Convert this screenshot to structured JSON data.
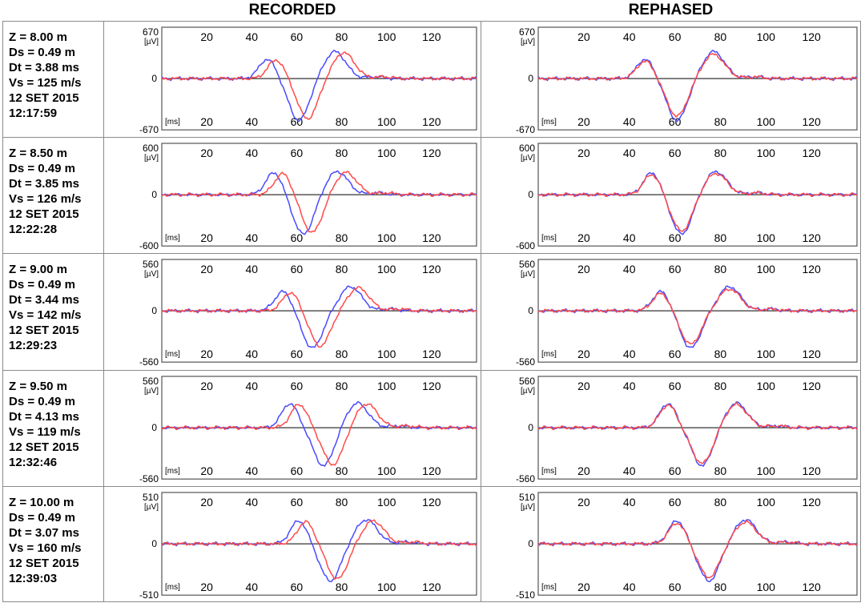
{
  "headings": {
    "recorded": "RECORDED",
    "rephased": "REPHASED"
  },
  "colors": {
    "blue": "#4a4aff",
    "red": "#ff4a4a",
    "frame": "#555555",
    "zero": "#333333"
  },
  "chart_data": [
    {
      "type": "line",
      "info": [
        "Z = 8.00 m",
        "Ds = 0.49 m",
        "Dt = 3.88 ms",
        "Vs = 125 m/s",
        "12 SET 2015",
        "12:17:59"
      ],
      "ylim": [
        -670,
        670
      ],
      "ytick_top": "670",
      "ytick_bottom": "-670",
      "ytick_zero": "0",
      "yunit": "[µV]",
      "xunit": "[ms]",
      "xticks": [
        "20",
        "40",
        "60",
        "80",
        "100",
        "120"
      ],
      "xlim": [
        0,
        140
      ],
      "waveform": {
        "p1_t": 47,
        "p1_a": 0.42,
        "n_t": 61,
        "n_a": -0.9,
        "p2_t": 77,
        "p2_a": 0.58
      },
      "recorded": {
        "blue_shift": 0,
        "red_shift": 3.88,
        "red_scale": 0.96
      },
      "rephased": {
        "blue_shift": 0,
        "red_shift": 0,
        "red_scale": 0.9
      }
    },
    {
      "type": "line",
      "info": [
        "Z = 8.50 m",
        "Ds = 0.49 m",
        "Dt = 3.85 ms",
        "Vs = 126 m/s",
        "12 SET 2015",
        "12:22:28"
      ],
      "ylim": [
        -600,
        600
      ],
      "ytick_top": "600",
      "ytick_bottom": "-600",
      "ytick_zero": "0",
      "yunit": "[µV]",
      "xunit": "[ms]",
      "xticks": [
        "20",
        "40",
        "60",
        "80",
        "100",
        "120"
      ],
      "xlim": [
        0,
        140
      ],
      "waveform": {
        "p1_t": 50,
        "p1_a": 0.48,
        "n_t": 63,
        "n_a": -0.85,
        "p2_t": 78,
        "p2_a": 0.5
      },
      "recorded": {
        "blue_shift": 0,
        "red_shift": 3.85,
        "red_scale": 0.96
      },
      "rephased": {
        "blue_shift": 0,
        "red_shift": 0,
        "red_scale": 0.92
      }
    },
    {
      "type": "line",
      "info": [
        "Z = 9.00 m",
        "Ds = 0.49 m",
        "Dt = 3.44 ms",
        "Vs = 142 m/s",
        "12 SET 2015",
        "12:29:23"
      ],
      "ylim": [
        -560,
        560
      ],
      "ytick_top": "560",
      "ytick_bottom": "-560",
      "ytick_zero": "0",
      "yunit": "[µV]",
      "xunit": "[ms]",
      "xticks": [
        "20",
        "40",
        "60",
        "80",
        "100",
        "120"
      ],
      "xlim": [
        0,
        140
      ],
      "waveform": {
        "p1_t": 54,
        "p1_a": 0.42,
        "n_t": 67,
        "n_a": -0.8,
        "p2_t": 84,
        "p2_a": 0.52
      },
      "recorded": {
        "blue_shift": 0,
        "red_shift": 3.44,
        "red_scale": 0.95
      },
      "rephased": {
        "blue_shift": 0,
        "red_shift": 0,
        "red_scale": 0.9
      }
    },
    {
      "type": "line",
      "info": [
        "Z = 9.50 m",
        "Ds = 0.49 m",
        "Dt = 4.13 ms",
        "Vs = 119 m/s",
        "12 SET 2015",
        "12:32:46"
      ],
      "ylim": [
        -560,
        560
      ],
      "ytick_top": "560",
      "ytick_bottom": "-560",
      "ytick_zero": "0",
      "yunit": "[µV]",
      "xunit": "[ms]",
      "xticks": [
        "20",
        "40",
        "60",
        "80",
        "100",
        "120"
      ],
      "xlim": [
        0,
        140
      ],
      "waveform": {
        "p1_t": 57,
        "p1_a": 0.52,
        "n_t": 72,
        "n_a": -0.82,
        "p2_t": 87,
        "p2_a": 0.53
      },
      "recorded": {
        "blue_shift": 0,
        "red_shift": 4.13,
        "red_scale": 0.97
      },
      "rephased": {
        "blue_shift": 0,
        "red_shift": 0,
        "red_scale": 0.94
      }
    },
    {
      "type": "line",
      "info": [
        "Z = 10.00 m",
        "Ds = 0.49 m",
        "Dt = 3.07 ms",
        "Vs = 160 m/s",
        "12 SET 2015",
        "12:39:03"
      ],
      "ylim": [
        -510,
        510
      ],
      "ytick_top": "510",
      "ytick_bottom": "-510",
      "ytick_zero": "0",
      "yunit": "[µV]",
      "xunit": "[ms]",
      "xticks": [
        "20",
        "40",
        "60",
        "80",
        "100",
        "120"
      ],
      "xlim": [
        0,
        140
      ],
      "waveform": {
        "p1_t": 61,
        "p1_a": 0.5,
        "n_t": 75,
        "n_a": -0.8,
        "p2_t": 91,
        "p2_a": 0.52
      },
      "recorded": {
        "blue_shift": 0,
        "red_shift": 3.07,
        "red_scale": 0.95
      },
      "rephased": {
        "blue_shift": 0,
        "red_shift": 0,
        "red_scale": 0.9
      }
    }
  ]
}
